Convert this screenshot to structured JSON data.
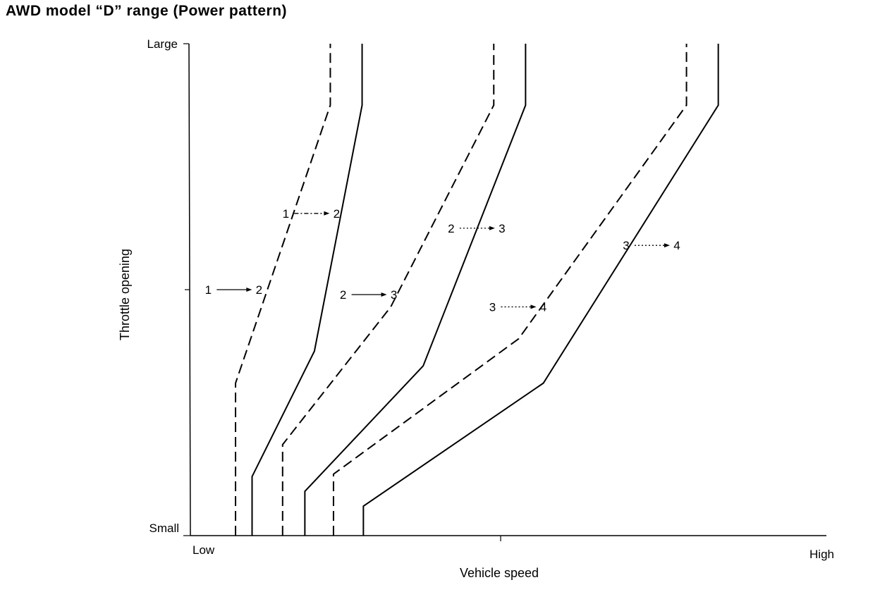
{
  "chart_data": {
    "type": "line",
    "title": "AWD model “D” range (Power pattern)",
    "xlabel": "Vehicle speed",
    "ylabel": "Throttle opening",
    "x_ticks": [
      "Low",
      "High"
    ],
    "y_ticks": [
      "Small",
      "Large"
    ],
    "xlim": [
      0,
      100
    ],
    "ylim": [
      0,
      100
    ],
    "grid": false,
    "legend": "none",
    "series": [
      {
        "style": "dashed",
        "points": [
          [
            7.1,
            0
          ],
          [
            7.1,
            31
          ],
          [
            22,
            87.5
          ],
          [
            22,
            100
          ]
        ]
      },
      {
        "style": "solid",
        "points": [
          [
            9.7,
            0
          ],
          [
            9.7,
            12
          ],
          [
            19.5,
            37.5
          ],
          [
            27,
            87.5
          ],
          [
            27,
            100
          ]
        ]
      },
      {
        "style": "dashed",
        "points": [
          [
            14.5,
            0
          ],
          [
            14.5,
            18.5
          ],
          [
            31.5,
            46.5
          ],
          [
            47.7,
            87.5
          ],
          [
            47.7,
            100
          ]
        ]
      },
      {
        "style": "solid",
        "points": [
          [
            18,
            0
          ],
          [
            18,
            9
          ],
          [
            36.6,
            34.5
          ],
          [
            52.7,
            87.5
          ],
          [
            52.7,
            100
          ]
        ]
      },
      {
        "style": "dashed",
        "points": [
          [
            22.5,
            0
          ],
          [
            22.5,
            12.5
          ],
          [
            51.6,
            40
          ],
          [
            78,
            87.5
          ],
          [
            78,
            100
          ]
        ]
      },
      {
        "style": "solid",
        "points": [
          [
            27.2,
            0
          ],
          [
            27.2,
            6
          ],
          [
            55.5,
            31
          ],
          [
            83,
            87.5
          ],
          [
            83,
            100
          ]
        ]
      }
    ],
    "annotations": [
      {
        "from": "1",
        "to": "2",
        "x": 19,
        "y": 65.5,
        "style": "dash-dot"
      },
      {
        "from": "1",
        "to": "2",
        "x": 6.8,
        "y": 50,
        "style": "solid"
      },
      {
        "from": "2",
        "to": "3",
        "x": 45,
        "y": 62.5,
        "style": "dotted"
      },
      {
        "from": "2",
        "to": "3",
        "x": 28,
        "y": 49,
        "style": "solid"
      },
      {
        "from": "3",
        "to": "4",
        "x": 72.5,
        "y": 59,
        "style": "dotted"
      },
      {
        "from": "3",
        "to": "4",
        "x": 51.5,
        "y": 46.5,
        "style": "dotted"
      }
    ]
  }
}
